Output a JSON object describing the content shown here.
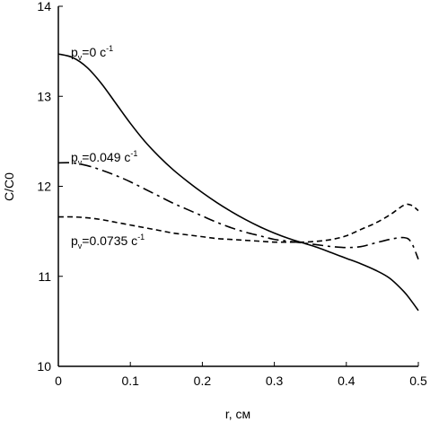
{
  "chart_data": {
    "type": "line",
    "title": "",
    "xlabel": "r, см",
    "ylabel": "C/C0",
    "xlim": [
      0,
      0.5
    ],
    "ylim": [
      10,
      14
    ],
    "x_ticks": [
      0,
      0.1,
      0.2,
      0.3,
      0.4,
      0.5
    ],
    "x_tick_labels": [
      "0",
      "0.1",
      "0.2",
      "0.3",
      "0.4",
      "0.5"
    ],
    "y_ticks": [
      10,
      11,
      12,
      13,
      14
    ],
    "y_tick_labels": [
      "10",
      "11",
      "12",
      "13",
      "14"
    ],
    "grid": false,
    "legend": "none",
    "series": [
      {
        "label_main": "p",
        "label_sub": "v",
        "label_value": "=0 c",
        "label_sup": "-1",
        "style": "solid",
        "x": [
          0,
          0.02,
          0.04,
          0.06,
          0.08,
          0.1,
          0.12,
          0.14,
          0.16,
          0.18,
          0.2,
          0.22,
          0.24,
          0.26,
          0.28,
          0.3,
          0.32,
          0.34,
          0.36,
          0.38,
          0.4,
          0.42,
          0.44,
          0.46,
          0.48,
          0.49,
          0.5
        ],
        "y": [
          13.47,
          13.43,
          13.32,
          13.14,
          12.92,
          12.7,
          12.5,
          12.33,
          12.18,
          12.05,
          11.93,
          11.82,
          11.72,
          11.63,
          11.55,
          11.48,
          11.42,
          11.37,
          11.32,
          11.26,
          11.2,
          11.14,
          11.07,
          10.98,
          10.83,
          10.73,
          10.62
        ]
      },
      {
        "label_main": "p",
        "label_sub": "v",
        "label_value": "=0.049 c",
        "label_sup": "-1",
        "style": "dashdot",
        "x": [
          0,
          0.02,
          0.04,
          0.06,
          0.08,
          0.1,
          0.12,
          0.14,
          0.16,
          0.18,
          0.2,
          0.22,
          0.24,
          0.26,
          0.28,
          0.3,
          0.32,
          0.34,
          0.36,
          0.38,
          0.4,
          0.42,
          0.44,
          0.46,
          0.48,
          0.49,
          0.5
        ],
        "y": [
          12.26,
          12.26,
          12.23,
          12.18,
          12.12,
          12.05,
          11.97,
          11.89,
          11.81,
          11.74,
          11.67,
          11.6,
          11.54,
          11.49,
          11.45,
          11.41,
          11.39,
          11.37,
          11.35,
          11.33,
          11.32,
          11.33,
          11.37,
          11.41,
          11.43,
          11.38,
          11.19
        ]
      },
      {
        "label_main": "p",
        "label_sub": "v",
        "label_value": "=0.0735 c",
        "label_sup": "-1",
        "style": "dashed",
        "x": [
          0,
          0.02,
          0.04,
          0.06,
          0.08,
          0.1,
          0.12,
          0.14,
          0.16,
          0.18,
          0.2,
          0.22,
          0.24,
          0.26,
          0.28,
          0.3,
          0.32,
          0.34,
          0.36,
          0.38,
          0.4,
          0.42,
          0.44,
          0.46,
          0.48,
          0.49,
          0.5
        ],
        "y": [
          11.66,
          11.66,
          11.65,
          11.63,
          11.6,
          11.57,
          11.54,
          11.51,
          11.48,
          11.46,
          11.44,
          11.42,
          11.41,
          11.4,
          11.39,
          11.38,
          11.38,
          11.38,
          11.39,
          11.41,
          11.45,
          11.52,
          11.59,
          11.68,
          11.79,
          11.79,
          11.73
        ]
      }
    ]
  }
}
